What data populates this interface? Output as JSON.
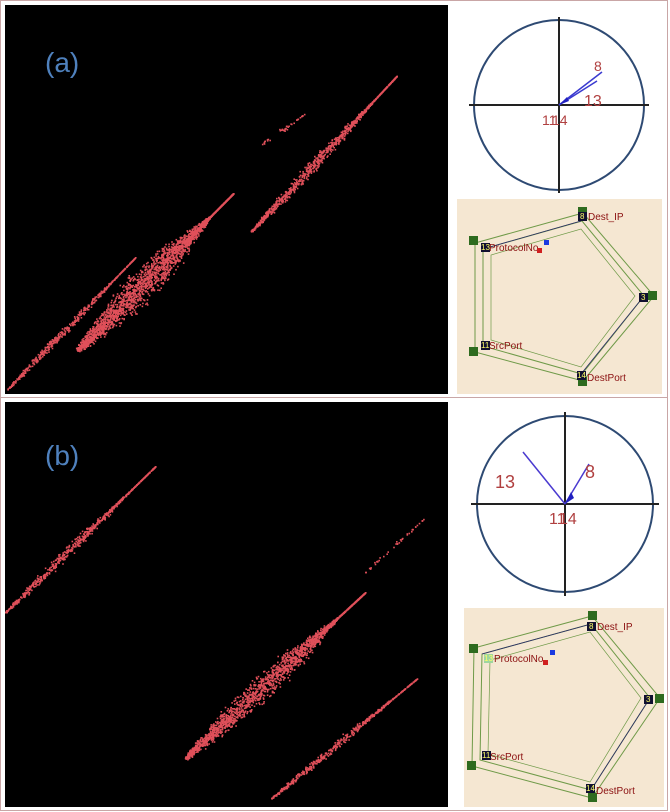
{
  "panels": [
    {
      "label": "(a)",
      "circle": {
        "labels": [
          "8",
          "13",
          "11",
          "14"
        ]
      },
      "pentagon": {
        "nodes": [
          {
            "number": "8",
            "label": "Dest_IP"
          },
          {
            "number": "3",
            "label": ""
          },
          {
            "number": "14",
            "label": "DestPort"
          },
          {
            "number": "11",
            "label": "SrcPort"
          },
          {
            "number": "13",
            "label": "ProtocolNo"
          }
        ]
      }
    },
    {
      "label": "(b)",
      "circle": {
        "labels": [
          "13",
          "8",
          "11",
          "14"
        ]
      },
      "pentagon": {
        "nodes": [
          {
            "number": "8",
            "label": "Dest_IP"
          },
          {
            "number": "3",
            "label": ""
          },
          {
            "number": "14",
            "label": "DestPort"
          },
          {
            "number": "11",
            "label": "SrcPort"
          },
          {
            "number": "13",
            "label": "ProtocolNo"
          }
        ]
      }
    }
  ],
  "colors": {
    "scatter_points": "#e0505a",
    "scatter_bg": "#000000",
    "circle_stroke": "#2e4a73",
    "vector_line": "#3a3ad0",
    "pentagon_bg": "#f5e7d2",
    "pentagon_line": "#6f9a48",
    "node_green": "#2e6b1f",
    "node_dark": "#101030"
  }
}
